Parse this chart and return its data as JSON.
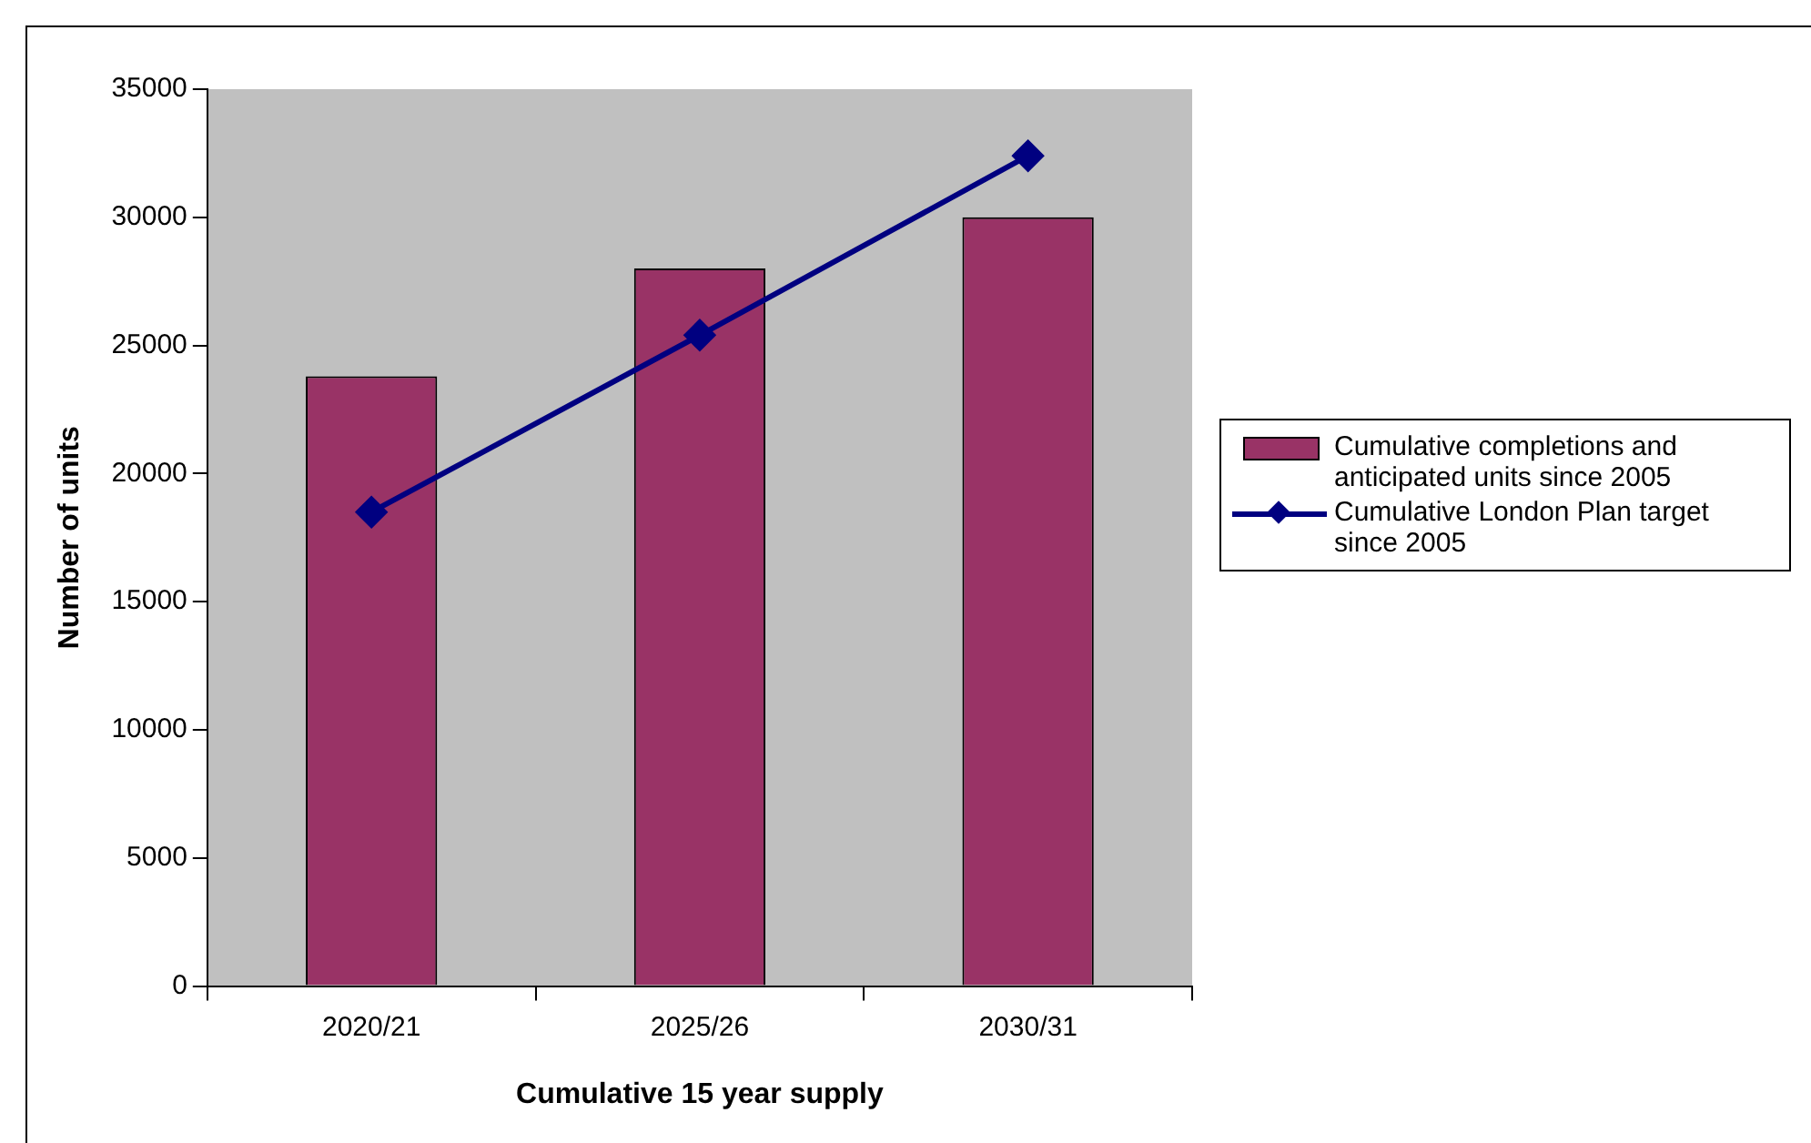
{
  "chart_data": {
    "type": "bar",
    "xlabel": "Cumulative 15 year supply",
    "ylabel": "Number of units",
    "categories": [
      "2020/21",
      "2025/26",
      "2030/31"
    ],
    "series": [
      {
        "name": "Cumulative completions and anticipated units since 2005",
        "color": "#993366",
        "values": [
          23800,
          28000,
          30000
        ]
      },
      {
        "name": "Cumulative London Plan target since 2005",
        "type": "line",
        "color": "#000080",
        "values": [
          18500,
          25400,
          32400
        ],
        "marker": "diamond",
        "line_style": "solid"
      }
    ],
    "ylim": [
      0,
      35000
    ],
    "yticks": [
      0,
      5000,
      10000,
      15000,
      20000,
      25000,
      30000,
      35000
    ],
    "grid": false,
    "legend": "right"
  }
}
